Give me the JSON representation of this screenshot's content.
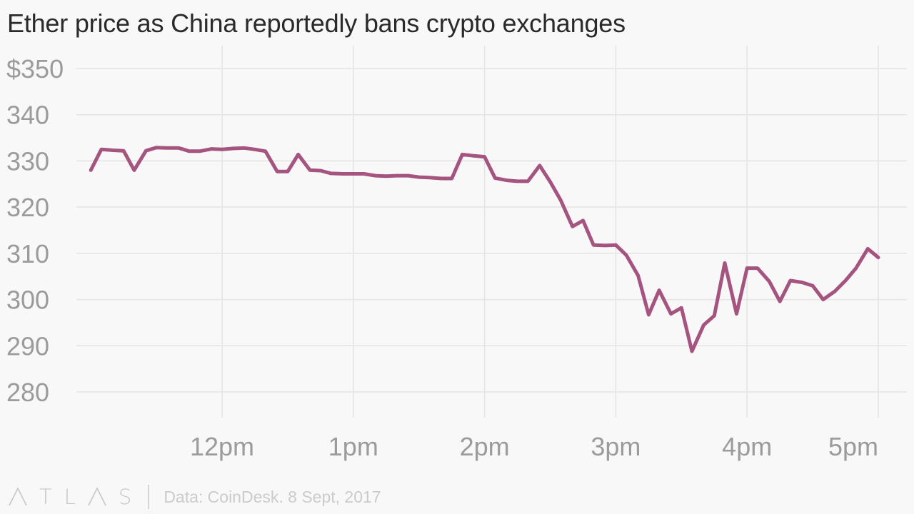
{
  "title": "Ether price as China reportedly bans crypto exchanges",
  "footer": {
    "brand_letters": [
      "T",
      "L",
      "S"
    ],
    "source": "Data: CoinDesk. 8 Sept, 2017"
  },
  "colors": {
    "line": "#a5547f",
    "grid": "#e4e4e4",
    "tick_text": "#9b9b9b",
    "background": "#f8f8f8"
  },
  "chart_data": {
    "type": "line",
    "title": "Ether price as China reportedly bans crypto exchanges",
    "xlabel": "",
    "ylabel": "",
    "x_ticks": [
      "12pm",
      "1pm",
      "2pm",
      "3pm",
      "4pm",
      "5pm"
    ],
    "x_tick_hours": [
      12,
      13,
      14,
      15,
      16,
      17
    ],
    "xlim_hours": [
      10.5,
      17.0
    ],
    "y_ticks": [
      "$350",
      "340",
      "330",
      "320",
      "310",
      "300",
      "290",
      "280"
    ],
    "y_tick_values": [
      350,
      340,
      330,
      320,
      310,
      300,
      290,
      280
    ],
    "ylim": [
      280,
      350
    ],
    "grid": true,
    "series": [
      {
        "name": "",
        "x_hours": [
          11.0,
          11.08,
          11.17,
          11.25,
          11.33,
          11.42,
          11.5,
          11.58,
          11.67,
          11.75,
          11.83,
          11.92,
          12.0,
          12.08,
          12.17,
          12.25,
          12.33,
          12.42,
          12.5,
          12.58,
          12.67,
          12.75,
          12.83,
          12.92,
          13.0,
          13.08,
          13.17,
          13.25,
          13.33,
          13.42,
          13.5,
          13.58,
          13.67,
          13.75,
          13.83,
          13.92,
          14.0,
          14.08,
          14.17,
          14.25,
          14.33,
          14.42,
          14.5,
          14.58,
          14.67,
          14.75,
          14.83,
          14.92,
          15.0,
          15.08,
          15.17,
          15.25,
          15.33,
          15.42,
          15.5,
          15.58,
          15.67,
          15.75,
          15.83,
          15.92,
          16.0,
          16.08,
          16.17,
          16.25,
          16.33,
          16.42,
          16.5,
          16.58,
          16.67,
          16.75,
          16.83,
          16.92,
          17.0
        ],
        "y": [
          328.0,
          332.5,
          332.3,
          332.2,
          328.0,
          332.2,
          332.9,
          332.8,
          332.8,
          332.1,
          332.1,
          332.6,
          332.5,
          332.7,
          332.8,
          332.5,
          332.1,
          327.7,
          327.7,
          331.4,
          328.0,
          327.9,
          327.3,
          327.2,
          327.2,
          327.2,
          326.8,
          326.7,
          326.8,
          326.8,
          326.5,
          326.4,
          326.2,
          326.2,
          331.4,
          331.1,
          330.9,
          326.3,
          325.8,
          325.6,
          325.6,
          329.0,
          325.5,
          321.5,
          315.8,
          317.1,
          311.8,
          311.7,
          311.8,
          309.6,
          305.2,
          296.7,
          302.0,
          296.9,
          298.2,
          288.8,
          294.5,
          296.5,
          307.9,
          296.9,
          306.8,
          306.8,
          303.9,
          299.6,
          304.1,
          303.7,
          303.0,
          300.0,
          301.8,
          304.1,
          306.8,
          311.0,
          309.1
        ]
      }
    ]
  }
}
